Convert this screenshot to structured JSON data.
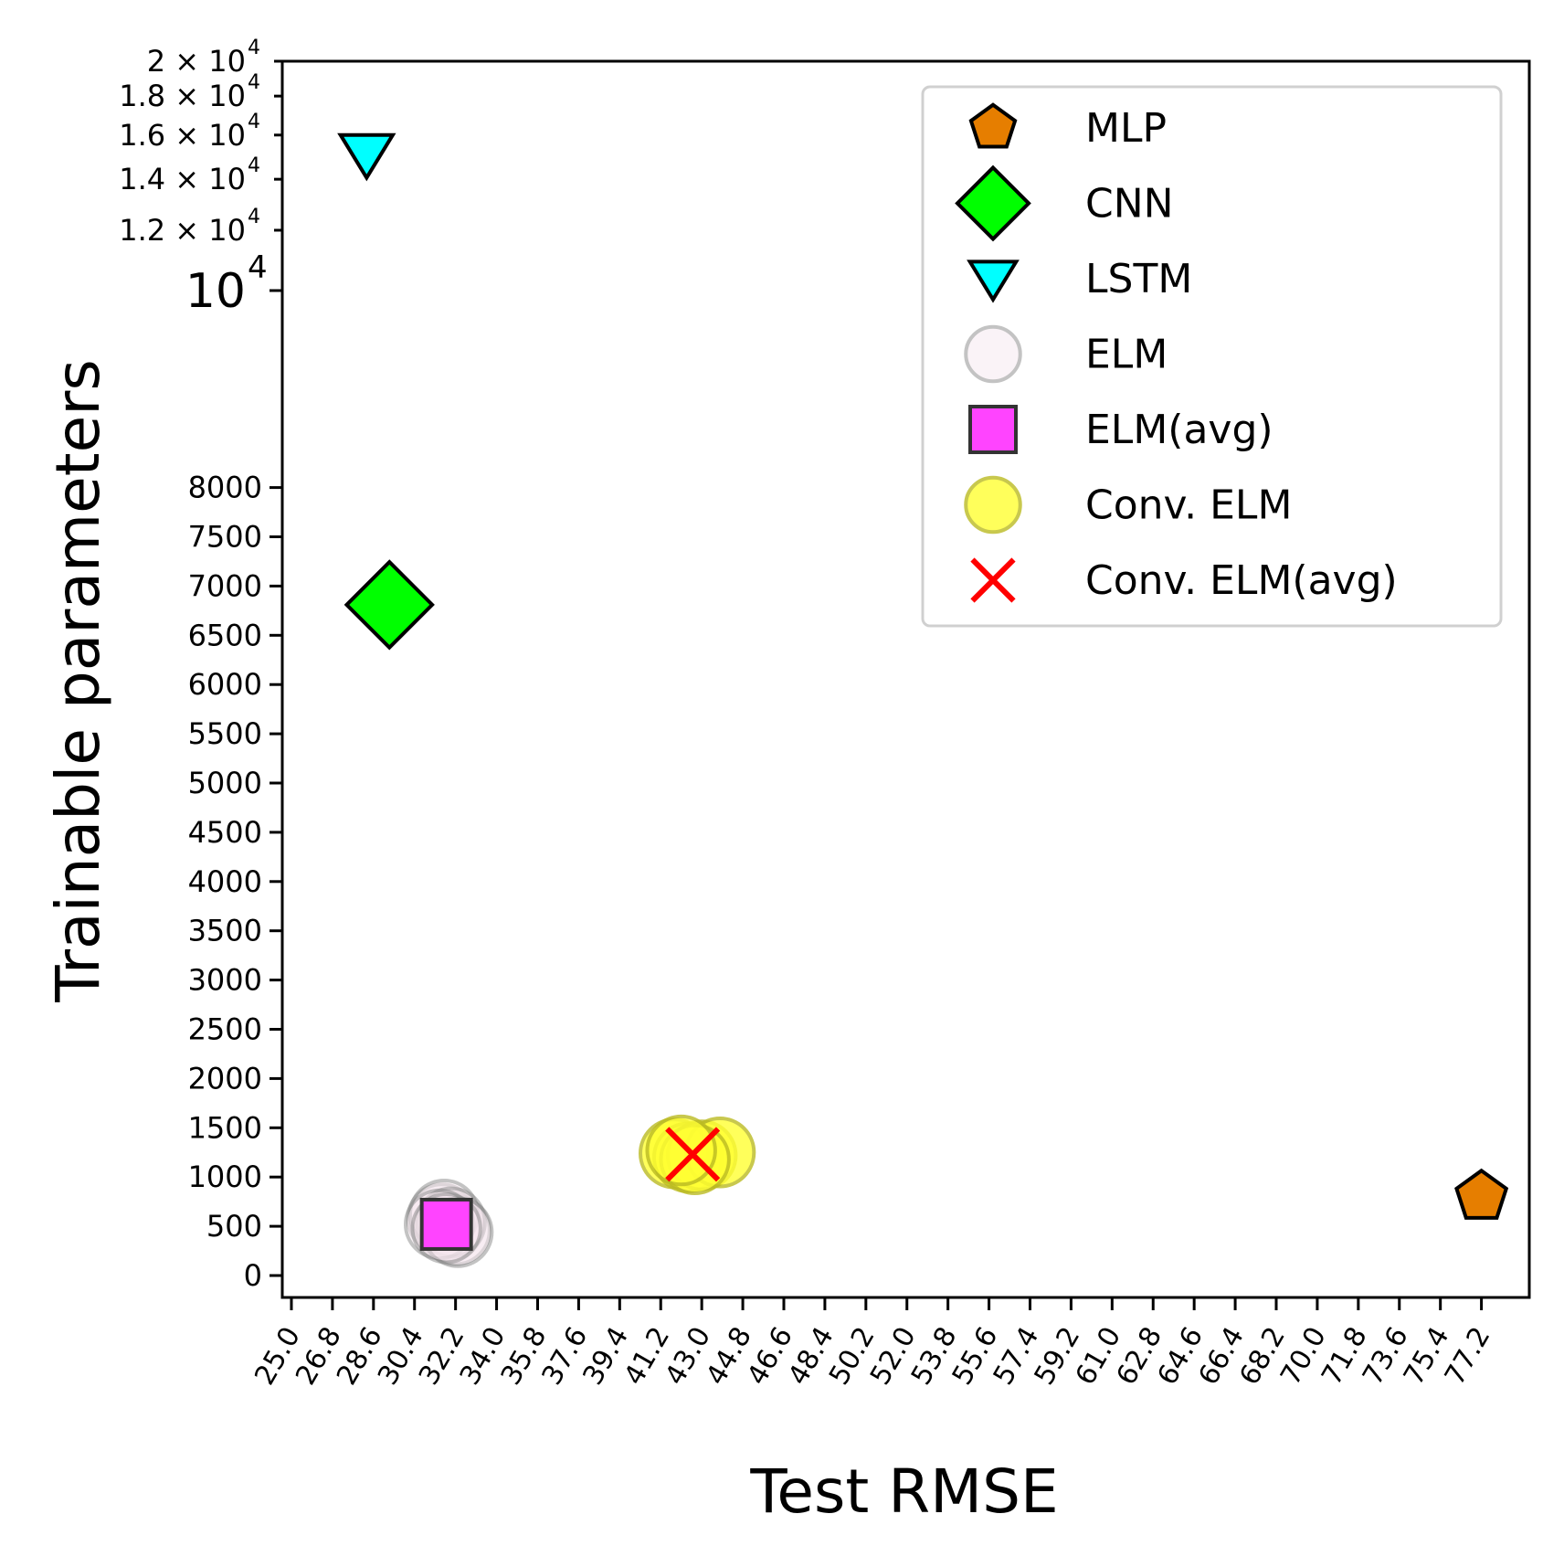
{
  "chart_data": {
    "type": "scatter",
    "xlabel": "Test RMSE",
    "ylabel": "Trainable parameters",
    "xticks": [
      "25.0",
      "26.8",
      "28.6",
      "30.4",
      "32.2",
      "34.0",
      "35.8",
      "37.6",
      "39.4",
      "41.2",
      "43.0",
      "44.8",
      "46.6",
      "48.4",
      "50.2",
      "52.0",
      "53.8",
      "55.6",
      "57.4",
      "59.2",
      "61.0",
      "62.8",
      "64.6",
      "66.4",
      "68.2",
      "70.0",
      "71.8",
      "73.6",
      "75.4",
      "77.2"
    ],
    "yticks_linear": [
      {
        "value": 0,
        "label": "0"
      },
      {
        "value": 500,
        "label": "500"
      },
      {
        "value": 1000,
        "label": "1000"
      },
      {
        "value": 1500,
        "label": "1500"
      },
      {
        "value": 2000,
        "label": "2000"
      },
      {
        "value": 2500,
        "label": "2500"
      },
      {
        "value": 3000,
        "label": "3000"
      },
      {
        "value": 3500,
        "label": "3500"
      },
      {
        "value": 4000,
        "label": "4000"
      },
      {
        "value": 4500,
        "label": "4500"
      },
      {
        "value": 5000,
        "label": "5000"
      },
      {
        "value": 5500,
        "label": "5500"
      },
      {
        "value": 6000,
        "label": "6000"
      },
      {
        "value": 6500,
        "label": "6500"
      },
      {
        "value": 7000,
        "label": "7000"
      },
      {
        "value": 7500,
        "label": "7500"
      },
      {
        "value": 8000,
        "label": "8000"
      }
    ],
    "yticks_log": [
      {
        "value": 10000,
        "label": "10",
        "exp": "4",
        "big": true
      },
      {
        "value": 12000,
        "label": "1.2 × 10",
        "exp": "4"
      },
      {
        "value": 14000,
        "label": "1.4 × 10",
        "exp": "4"
      },
      {
        "value": 16000,
        "label": "1.6 × 10",
        "exp": "4"
      },
      {
        "value": 18000,
        "label": "1.8 × 10",
        "exp": "4"
      },
      {
        "value": 20000,
        "label": "2 × 10",
        "exp": "4"
      }
    ],
    "y_scale": "symlog (linear below 10^4, log above)",
    "xlim": [
      24.6,
      79.3
    ],
    "ylim": [
      -180,
      20000
    ],
    "legend_position": "top-right",
    "grid": false,
    "series": [
      {
        "name": "MLP",
        "marker": "pentagon",
        "color": "#e67e00",
        "edge": "#000000",
        "points": [
          [
            77.2,
            800
          ]
        ]
      },
      {
        "name": "CNN",
        "marker": "diamond",
        "color": "#00ff00",
        "edge": "#000000",
        "points": [
          [
            29.3,
            6810
          ]
        ]
      },
      {
        "name": "LSTM",
        "marker": "triangle-down",
        "color": "#00ffff",
        "edge": "#000000",
        "points": [
          [
            28.3,
            15100
          ]
        ]
      },
      {
        "name": "ELM",
        "marker": "circle",
        "color": "#f7e8f0",
        "edge": "#888888",
        "alpha": 0.5,
        "points": [
          [
            31.6,
            580
          ],
          [
            31.9,
            500
          ],
          [
            32.2,
            460
          ],
          [
            31.7,
            620
          ],
          [
            32.0,
            540
          ],
          [
            31.5,
            520
          ],
          [
            32.3,
            440
          ],
          [
            31.8,
            480
          ]
        ]
      },
      {
        "name": "ELM(avg)",
        "marker": "square",
        "color": "#ff44ff",
        "edge": "#333333",
        "points": [
          [
            31.8,
            520
          ]
        ]
      },
      {
        "name": "Conv. ELM",
        "marker": "circle",
        "color": "#ffff33",
        "edge": "#bbbb22",
        "alpha": 0.8,
        "points": [
          [
            41.8,
            1240
          ],
          [
            42.4,
            1200
          ],
          [
            43.0,
            1220
          ],
          [
            43.8,
            1250
          ],
          [
            42.7,
            1180
          ],
          [
            42.1,
            1270
          ]
        ]
      },
      {
        "name": "Conv. ELM(avg)",
        "marker": "x",
        "color": "#ff0000",
        "points": [
          [
            42.6,
            1230
          ]
        ]
      }
    ]
  }
}
